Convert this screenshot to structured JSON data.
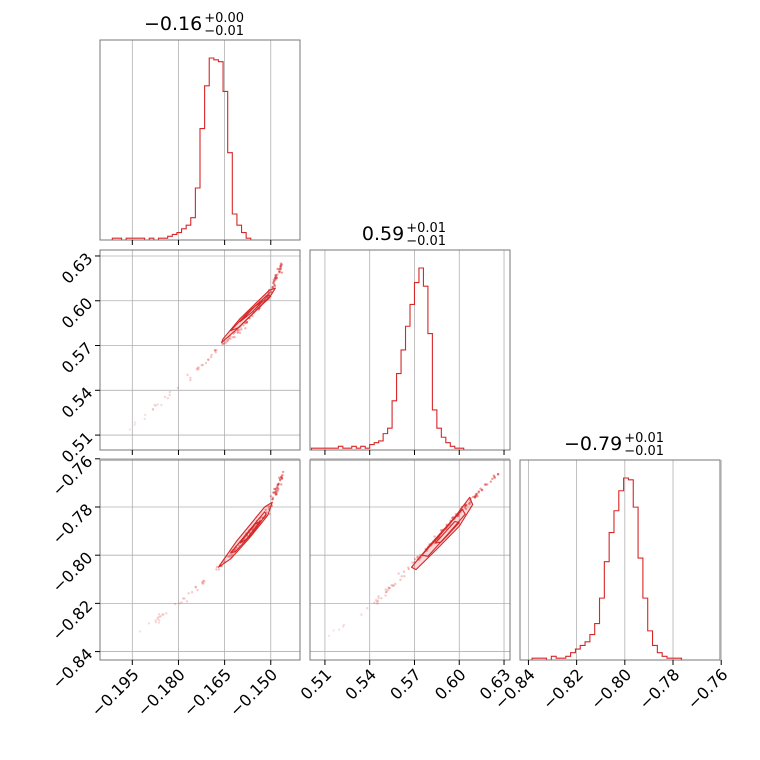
{
  "chart_data": {
    "type": "corner",
    "color": "#d62728",
    "grid": true,
    "parameters": [
      {
        "title": {
          "value": "−0.16",
          "plus": "+0.00",
          "minus": "−0.01"
        },
        "range": [
          -0.2055,
          -0.1405
        ],
        "ticks": [
          -0.195,
          -0.18,
          -0.165,
          -0.15
        ],
        "tick_labels": [
          "−0.195",
          "−0.180",
          "−0.165",
          "−0.150"
        ],
        "hist": {
          "bin_start": -0.2045,
          "bin_width": 0.0015,
          "counts": [
            0,
            0,
            1,
            1,
            0,
            1,
            1,
            1,
            1,
            0,
            1,
            0,
            1,
            1,
            2,
            3,
            4,
            6,
            8,
            12,
            28,
            60,
            83,
            98,
            97,
            96,
            80,
            47,
            14,
            8,
            4,
            1,
            0
          ]
        }
      },
      {
        "title": {
          "value": "0.59",
          "plus": "+0.01",
          "minus": "−0.01"
        },
        "range": [
          0.5,
          0.634
        ],
        "ticks": [
          0.51,
          0.54,
          0.57,
          0.6,
          0.63
        ],
        "tick_labels": [
          "0.51",
          "0.54",
          "0.57",
          "0.60",
          "0.63"
        ],
        "hist": {
          "bin_start": 0.501,
          "bin_width": 0.003,
          "counts": [
            1,
            1,
            1,
            1,
            1,
            1,
            2,
            1,
            1,
            2,
            1,
            2,
            1,
            3,
            4,
            5,
            9,
            12,
            27,
            42,
            55,
            68,
            80,
            92,
            100,
            90,
            64,
            22,
            12,
            7,
            4,
            2,
            1,
            1
          ]
        }
      },
      {
        "title": {
          "value": "−0.79",
          "plus": "+0.01",
          "minus": "−0.01"
        },
        "range": [
          -0.8435,
          -0.7605
        ],
        "ticks": [
          -0.84,
          -0.82,
          -0.8,
          -0.78,
          -0.76
        ],
        "tick_labels": [
          "−0.84",
          "−0.82",
          "−0.80",
          "−0.78",
          "−0.76"
        ],
        "hist": {
          "bin_start": -0.8425,
          "bin_width": 0.002,
          "counts": [
            0,
            0,
            1,
            1,
            1,
            0,
            2,
            1,
            1,
            2,
            4,
            6,
            8,
            10,
            14,
            20,
            34,
            54,
            70,
            82,
            93,
            100,
            99,
            84,
            56,
            34,
            16,
            8,
            4,
            2,
            1,
            1,
            1,
            0
          ]
        }
      }
    ],
    "pairs": [
      {
        "x_param": 0,
        "y_param": 1,
        "trend": [
          [
            -0.196,
            0.513
          ],
          [
            -0.186,
            0.532
          ],
          [
            -0.176,
            0.549
          ],
          [
            -0.166,
            0.57
          ],
          [
            -0.159,
            0.583
          ],
          [
            -0.151,
            0.603
          ],
          [
            -0.146,
            0.626
          ]
        ],
        "contours": [
          [
            [
              -0.1655,
              0.5745
            ],
            [
              -0.16,
              0.588
            ],
            [
              -0.1505,
              0.607
            ],
            [
              -0.1485,
              0.6085
            ],
            [
              -0.15,
              0.6035
            ],
            [
              -0.155,
              0.593
            ],
            [
              -0.161,
              0.581
            ],
            [
              -0.166,
              0.572
            ]
          ],
          [
            [
              -0.163,
              0.58
            ],
            [
              -0.1575,
              0.592
            ],
            [
              -0.151,
              0.604
            ],
            [
              -0.15,
              0.603
            ],
            [
              -0.1545,
              0.594
            ],
            [
              -0.1605,
              0.582
            ]
          ],
          [
            [
              -0.16,
              0.586
            ],
            [
              -0.155,
              0.5965
            ],
            [
              -0.1525,
              0.6
            ],
            [
              -0.156,
              0.5925
            ]
          ]
        ]
      },
      {
        "x_param": 0,
        "y_param": 2,
        "trend": [
          [
            -0.196,
            -0.834
          ],
          [
            -0.186,
            -0.826
          ],
          [
            -0.176,
            -0.816
          ],
          [
            -0.166,
            -0.804
          ],
          [
            -0.159,
            -0.794
          ],
          [
            -0.151,
            -0.782
          ],
          [
            -0.146,
            -0.766
          ]
        ],
        "contours": [
          [
            [
              -0.1665,
              -0.804
            ],
            [
              -0.161,
              -0.794
            ],
            [
              -0.152,
              -0.78
            ],
            [
              -0.1495,
              -0.778
            ],
            [
              -0.151,
              -0.7835
            ],
            [
              -0.157,
              -0.793
            ],
            [
              -0.163,
              -0.8015
            ],
            [
              -0.167,
              -0.805
            ]
          ],
          [
            [
              -0.163,
              -0.799
            ],
            [
              -0.1575,
              -0.7905
            ],
            [
              -0.152,
              -0.782
            ],
            [
              -0.1515,
              -0.783
            ],
            [
              -0.156,
              -0.791
            ],
            [
              -0.1615,
              -0.7985
            ]
          ],
          [
            [
              -0.16,
              -0.795
            ],
            [
              -0.155,
              -0.787
            ],
            [
              -0.1535,
              -0.786
            ],
            [
              -0.158,
              -0.7935
            ]
          ]
        ]
      },
      {
        "x_param": 1,
        "y_param": 2,
        "trend": [
          [
            0.512,
            -0.834
          ],
          [
            0.532,
            -0.826
          ],
          [
            0.55,
            -0.816
          ],
          [
            0.57,
            -0.803
          ],
          [
            0.585,
            -0.793
          ],
          [
            0.6,
            -0.782
          ],
          [
            0.627,
            -0.765
          ]
        ],
        "contours": [
          [
            [
              0.568,
              -0.805
            ],
            [
              0.58,
              -0.796
            ],
            [
              0.596,
              -0.785
            ],
            [
              0.607,
              -0.776
            ],
            [
              0.609,
              -0.779
            ],
            [
              0.6,
              -0.788
            ],
            [
              0.585,
              -0.7975
            ],
            [
              0.571,
              -0.806
            ]
          ],
          [
            [
              0.575,
              -0.8
            ],
            [
              0.588,
              -0.791
            ],
            [
              0.602,
              -0.781
            ],
            [
              0.604,
              -0.783
            ],
            [
              0.592,
              -0.7915
            ],
            [
              0.579,
              -0.8005
            ]
          ],
          [
            [
              0.584,
              -0.795
            ],
            [
              0.597,
              -0.786
            ],
            [
              0.6,
              -0.7865
            ],
            [
              0.588,
              -0.7945
            ]
          ]
        ]
      }
    ]
  }
}
